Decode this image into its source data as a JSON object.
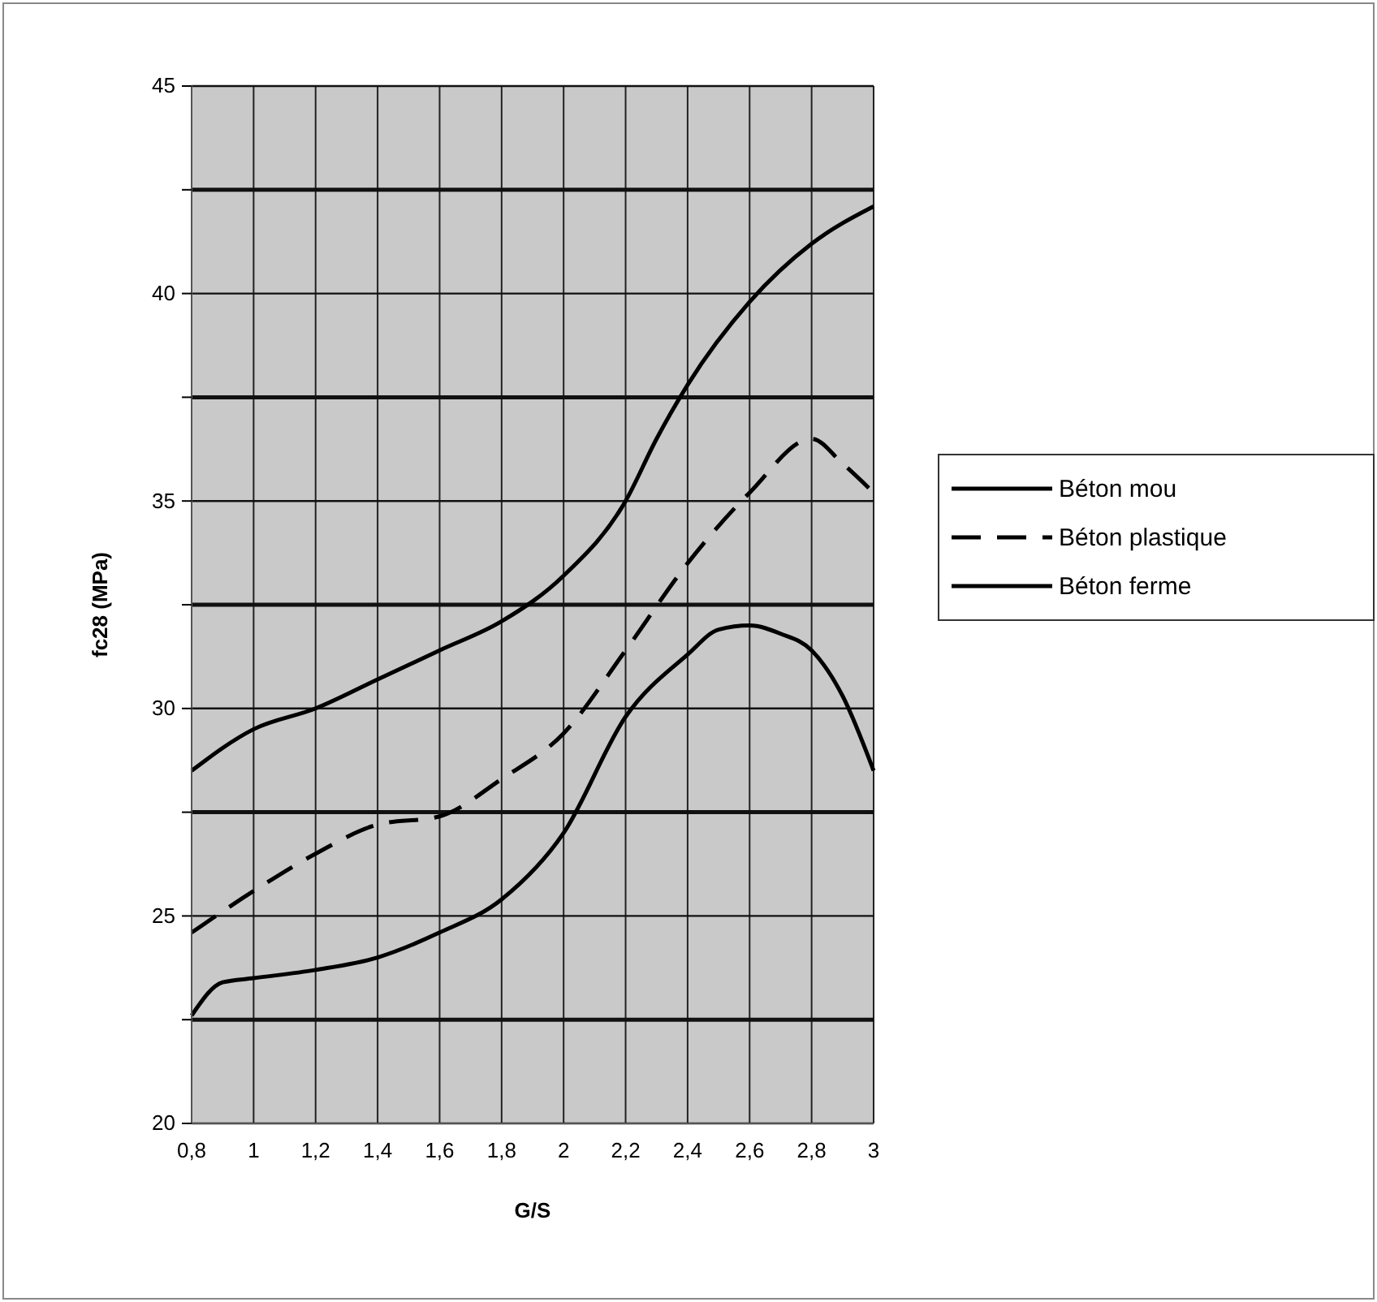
{
  "chart_data": {
    "type": "line",
    "xlabel": "G/S",
    "ylabel": "fc28 (MPa)",
    "xlim": [
      0.8,
      3
    ],
    "xticks": [
      {
        "value": 0.8,
        "label": "0,8"
      },
      1,
      {
        "value": 1.2,
        "label": "1,2"
      },
      {
        "value": 1.4,
        "label": "1,4"
      },
      {
        "value": 1.6,
        "label": "1,6"
      },
      {
        "value": 1.8,
        "label": "1,8"
      },
      2,
      {
        "value": 2.2,
        "label": "2,2"
      },
      {
        "value": 2.4,
        "label": "2,4"
      },
      {
        "value": 2.6,
        "label": "2,6"
      },
      {
        "value": 2.8,
        "label": "2,8"
      },
      3
    ],
    "ylim": [
      20,
      45
    ],
    "yticks": [
      20,
      {
        "value": 22.5,
        "label": null
      },
      25,
      {
        "value": 27.5,
        "label": null
      },
      30,
      {
        "value": 32.5,
        "label": null
      },
      35,
      {
        "value": 37.5,
        "label": null
      },
      40,
      {
        "value": 42.5,
        "label": null
      },
      45
    ],
    "grid": true,
    "legend": "right",
    "marker": "none",
    "series": [
      {
        "name": "Béton mou",
        "color": "#000000",
        "line_style": "solid",
        "x": [
          0.8,
          1,
          1.2,
          1.4,
          1.6,
          1.8,
          2,
          2.2,
          2.3,
          2.4,
          2.6,
          2.8,
          3
        ],
        "values": [
          28.5,
          29.5,
          30,
          30.7,
          31.4,
          32.1,
          33.2,
          35,
          36.5,
          37.8,
          39.8,
          41.2,
          42.1
        ]
      },
      {
        "name": "Béton plastique",
        "color": "#000000",
        "line_style": "dashed",
        "x": [
          0.8,
          1,
          1.2,
          1.4,
          1.6,
          1.8,
          2,
          2.2,
          2.4,
          2.6,
          2.8,
          2.9,
          3
        ],
        "values": [
          24.6,
          25.6,
          26.5,
          27.2,
          27.4,
          28.3,
          29.4,
          31.4,
          33.5,
          35.2,
          36.5,
          35.9,
          35.2
        ]
      },
      {
        "name": "Béton ferme",
        "color": "#000000",
        "line_style": "solid",
        "x": [
          0.8,
          0.9,
          1,
          1.2,
          1.4,
          1.6,
          1.8,
          2,
          2.2,
          2.4,
          2.5,
          2.6,
          2.7,
          2.8,
          2.9,
          3
        ],
        "values": [
          22.6,
          23.4,
          23.5,
          23.7,
          24,
          24.6,
          25.4,
          27,
          29.8,
          31.3,
          31.9,
          32,
          31.8,
          31.4,
          30.3,
          28.5
        ]
      }
    ]
  }
}
